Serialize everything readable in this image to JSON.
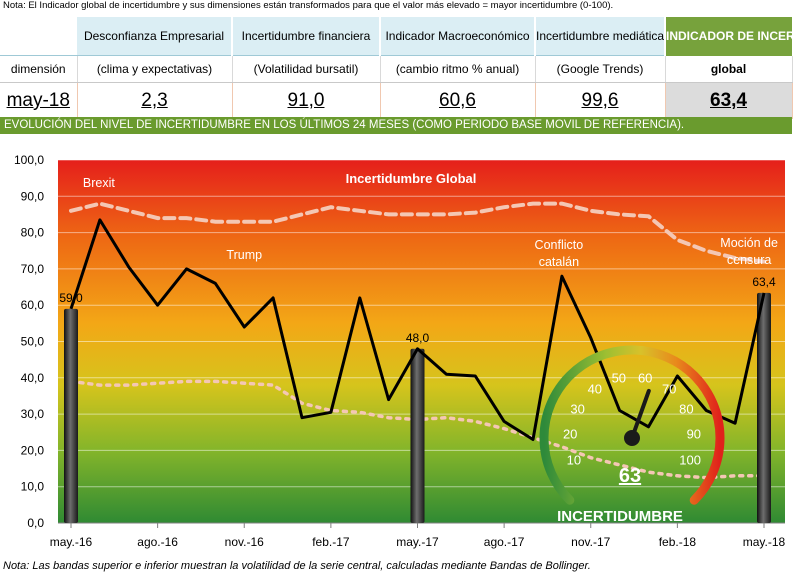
{
  "note_top": "Nota: El Indicador global de incertidumbre y sus dimensiones están transformados para que el valor más elevado = mayor incertidumbre (0-100).",
  "table": {
    "row_label_header": "",
    "row_label_sub": "dimensión",
    "date": "may-18",
    "columns": [
      {
        "header": "Desconfianza Empresarial",
        "sub": "(clima y expectativas)",
        "value": "2,3"
      },
      {
        "header": "Incertidumbre financiera",
        "sub": "(Volatilidad bursatil)",
        "value": "91,0"
      },
      {
        "header": "Indicador Macroeconómico",
        "sub": "(cambio ritmo % anual)",
        "value": "60,6"
      },
      {
        "header": "Incertidumbre mediática",
        "sub": "(Google Trends)",
        "value": "99,6"
      },
      {
        "header": "INDICADOR DE INCERTIDUMBRE",
        "sub": "global",
        "value": "63,4"
      }
    ]
  },
  "evolution_banner": "EVOLUCIÓN DEL NIVEL DE INCERTIDUMBRE EN LOS ÚLTIMOS 24 MESES (COMO PERIODO BASE MOVIL DE REFERENCIA).",
  "note_bottom": "Nota: Las bandas superior e inferior muestran la volatilidad de la serie central, calculadas mediante Bandas de Bollinger.",
  "colors": {
    "line": "#000000",
    "band": "#f4c7b4",
    "gauge_needle": "#1a1a1a",
    "banner": "#6a9b2e",
    "header_green": "#77a23c"
  },
  "chart_data": {
    "type": "line",
    "title": "Incertidumbre Global",
    "xlabel": "",
    "ylabel": "",
    "ylim": [
      0,
      100
    ],
    "yticks": [
      "0,0",
      "10,0",
      "20,0",
      "30,0",
      "40,0",
      "50,0",
      "60,0",
      "70,0",
      "80,0",
      "90,0",
      "100,0"
    ],
    "x": [
      "may.-16",
      "jun.-16",
      "jul.-16",
      "ago.-16",
      "sep.-16",
      "oct.-16",
      "nov.-16",
      "dic.-16",
      "ene.-17",
      "feb.-17",
      "mar.-17",
      "abr.-17",
      "may.-17",
      "jun.-17",
      "jul.-17",
      "ago.-17",
      "sep.-17",
      "oct.-17",
      "nov.-17",
      "dic.-17",
      "ene.-18",
      "feb.-18",
      "mar.-18",
      "abr.-18",
      "may.-18"
    ],
    "xtick_labels": [
      "may.-16",
      "ago.-16",
      "nov.-16",
      "feb.-17",
      "may.-17",
      "ago.-17",
      "nov.-17",
      "feb.-18",
      "may.-18"
    ],
    "series": [
      {
        "values": [
          59.0,
          83.5,
          70.5,
          60.0,
          70.0,
          66.0,
          54.0,
          62.0,
          29.0,
          30.5,
          62.0,
          34.0,
          48.0,
          41.0,
          40.5,
          28.0,
          23.0,
          68.0,
          51.0,
          31.0,
          26.5,
          40.5,
          31.0,
          27.5,
          63.4
        ]
      },
      {
        "values": [
          86,
          88,
          86,
          84,
          84,
          83,
          83,
          83,
          85,
          87,
          86,
          85,
          85,
          85,
          85.5,
          87,
          88,
          88,
          86,
          85,
          84.5,
          78,
          75,
          73,
          72
        ]
      },
      {
        "values": [
          39,
          38,
          38,
          38.5,
          39,
          39,
          38.5,
          38,
          33,
          31,
          30.5,
          29,
          28.5,
          29,
          28,
          26,
          23.5,
          21,
          18,
          16,
          14,
          13,
          12.5,
          13,
          13
        ]
      }
    ],
    "bar_markers": [
      {
        "x": "may.-16",
        "label": "59,0"
      },
      {
        "x": "may.-17",
        "label": "48,0"
      },
      {
        "x": "may.-18",
        "label": "63,4"
      }
    ],
    "annotations": [
      {
        "text": "Brexit",
        "x": "jun.-16"
      },
      {
        "text": "Trump",
        "x": "nov.-16"
      },
      {
        "text": "Conflicto catalán",
        "x": "oct.-17"
      },
      {
        "text": "Moción de censura",
        "x": "abr.-18"
      }
    ],
    "gauge": {
      "value": "63",
      "label": "INCERTIDUMBRE",
      "ticks": [
        "10",
        "20",
        "30",
        "40",
        "50",
        "60",
        "70",
        "80",
        "90",
        "100"
      ]
    },
    "grid": true,
    "legend": "none"
  }
}
